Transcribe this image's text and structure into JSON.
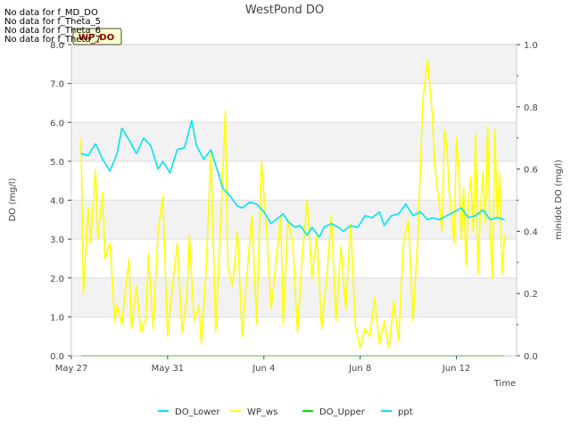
{
  "chart_data": {
    "type": "line",
    "title": "WestPond DO",
    "xlabel": "Time",
    "ylabel_left": "DO (mg/l)",
    "ylabel_right": "minidot DO (mg/l)",
    "xlim_days": [
      0,
      18.5
    ],
    "ylim_left": [
      0,
      8
    ],
    "ylim_right": [
      0,
      1
    ],
    "x_ticks": [
      {
        "label": "May 27",
        "day": 0
      },
      {
        "label": "May 31",
        "day": 4
      },
      {
        "label": "Jun 4",
        "day": 8
      },
      {
        "label": "Jun 8",
        "day": 12
      },
      {
        "label": "Jun 12",
        "day": 16
      }
    ],
    "y_ticks_left": [
      "0.0",
      "1.0",
      "2.0",
      "3.0",
      "4.0",
      "5.0",
      "6.0",
      "7.0",
      "8.0"
    ],
    "y_ticks_right": [
      "0.0",
      "0.2",
      "0.4",
      "0.6",
      "0.8",
      "1.0"
    ],
    "no_data_messages": [
      "No data for f_MD_DO",
      "No data for f_Theta_5",
      "No data for f_Theta_6",
      "No data for f_Theta_7"
    ],
    "annotation_box": "WP_DO",
    "legend": [
      {
        "name": "DO_Lower",
        "color": "#00e5ee"
      },
      {
        "name": "WP_ws",
        "color": "#ffff00"
      },
      {
        "name": "DO_Upper",
        "color": "#00dd00"
      },
      {
        "name": "ppt",
        "color": "#00e5ee"
      }
    ],
    "series": [
      {
        "name": "DO_Lower",
        "axis": "left",
        "color": "#00e5ee",
        "x": [
          0.4,
          0.7,
          1.0,
          1.3,
          1.6,
          1.9,
          2.1,
          2.4,
          2.7,
          3.0,
          3.3,
          3.6,
          3.8,
          4.1,
          4.4,
          4.7,
          5.0,
          5.2,
          5.5,
          5.8,
          6.0,
          6.3,
          6.6,
          6.9,
          7.1,
          7.4,
          7.7,
          8.0,
          8.3,
          8.5,
          8.8,
          9.0,
          9.3,
          9.5,
          9.8,
          10.0,
          10.3,
          10.5,
          10.8,
          11.1,
          11.3,
          11.6,
          11.9,
          12.2,
          12.5,
          12.8,
          13.0,
          13.3,
          13.6,
          13.9,
          14.2,
          14.5,
          14.8,
          15.0,
          15.3,
          15.6,
          15.9,
          16.2,
          16.5,
          16.8,
          17.1,
          17.4,
          17.7,
          18.0
        ],
        "y": [
          5.2,
          5.15,
          5.45,
          5.05,
          4.75,
          5.2,
          5.85,
          5.55,
          5.2,
          5.6,
          5.4,
          4.8,
          5.0,
          4.7,
          5.3,
          5.35,
          6.05,
          5.4,
          5.05,
          5.3,
          4.9,
          4.3,
          4.1,
          3.85,
          3.8,
          3.95,
          3.9,
          3.7,
          3.4,
          3.5,
          3.65,
          3.45,
          3.3,
          3.35,
          3.1,
          3.3,
          3.05,
          3.3,
          3.4,
          3.3,
          3.2,
          3.35,
          3.3,
          3.6,
          3.55,
          3.7,
          3.35,
          3.6,
          3.65,
          3.9,
          3.6,
          3.7,
          3.5,
          3.55,
          3.5,
          3.6,
          3.7,
          3.8,
          3.55,
          3.6,
          3.75,
          3.5,
          3.55,
          3.5
        ]
      },
      {
        "name": "WP_ws",
        "axis": "left",
        "color": "#ffff00",
        "x": [
          0.4,
          0.5,
          0.7,
          0.8,
          1.0,
          1.1,
          1.3,
          1.4,
          1.6,
          1.8,
          1.9,
          2.1,
          2.2,
          2.4,
          2.5,
          2.7,
          2.9,
          3.1,
          3.2,
          3.4,
          3.6,
          3.8,
          4.0,
          4.2,
          4.4,
          4.6,
          4.8,
          4.9,
          5.1,
          5.3,
          5.4,
          5.6,
          5.8,
          6.0,
          6.2,
          6.4,
          6.5,
          6.7,
          6.9,
          7.1,
          7.3,
          7.5,
          7.7,
          7.9,
          8.1,
          8.3,
          8.5,
          8.7,
          8.8,
          9.0,
          9.2,
          9.4,
          9.6,
          9.8,
          10.0,
          10.2,
          10.4,
          10.6,
          10.8,
          11.0,
          11.2,
          11.4,
          11.6,
          11.8,
          12.0,
          12.2,
          12.4,
          12.6,
          12.8,
          13.0,
          13.2,
          13.4,
          13.6,
          13.8,
          14.0,
          14.2,
          14.4,
          14.6,
          14.8,
          15.0,
          15.1,
          15.3,
          15.4,
          15.5,
          15.6,
          15.7,
          15.8,
          15.9,
          16.0,
          16.1,
          16.2,
          16.3,
          16.4,
          16.5,
          16.6,
          16.7,
          16.8,
          16.9,
          17.0,
          17.1,
          17.2,
          17.3,
          17.4,
          17.5,
          17.6,
          17.7,
          17.8,
          17.9,
          18.0
        ],
        "y": [
          5.6,
          1.6,
          3.8,
          2.9,
          4.8,
          3.0,
          4.2,
          2.5,
          2.9,
          0.9,
          1.3,
          0.8,
          1.4,
          2.5,
          0.7,
          1.8,
          0.6,
          1.0,
          2.6,
          0.7,
          3.2,
          4.1,
          0.5,
          1.8,
          2.9,
          0.6,
          1.5,
          3.1,
          0.9,
          1.3,
          0.3,
          2.2,
          5.2,
          0.6,
          3.3,
          6.3,
          2.3,
          1.8,
          3.2,
          0.5,
          2.1,
          3.6,
          0.8,
          5.0,
          3.3,
          1.2,
          2.4,
          3.6,
          0.8,
          3.5,
          2.9,
          0.6,
          2.6,
          4.0,
          2.0,
          3.1,
          0.7,
          1.9,
          3.6,
          0.9,
          2.8,
          1.2,
          3.4,
          0.8,
          0.2,
          0.7,
          0.5,
          1.5,
          0.3,
          0.9,
          0.2,
          1.4,
          0.4,
          2.9,
          3.5,
          0.9,
          3.1,
          6.5,
          7.6,
          6.2,
          4.9,
          3.8,
          3.2,
          5.8,
          5.4,
          4.2,
          3.6,
          2.9,
          5.6,
          4.8,
          3.0,
          4.3,
          2.3,
          3.9,
          4.6,
          3.2,
          5.7,
          2.1,
          3.8,
          4.7,
          3.4,
          5.9,
          3.2,
          2.0,
          5.8,
          3.5,
          4.7,
          2.1,
          3.1
        ]
      },
      {
        "name": "DO_Upper",
        "axis": "left",
        "color": "#00dd00",
        "x": [
          0.4,
          18.0
        ],
        "y": [
          0.0,
          0.0
        ]
      }
    ]
  }
}
